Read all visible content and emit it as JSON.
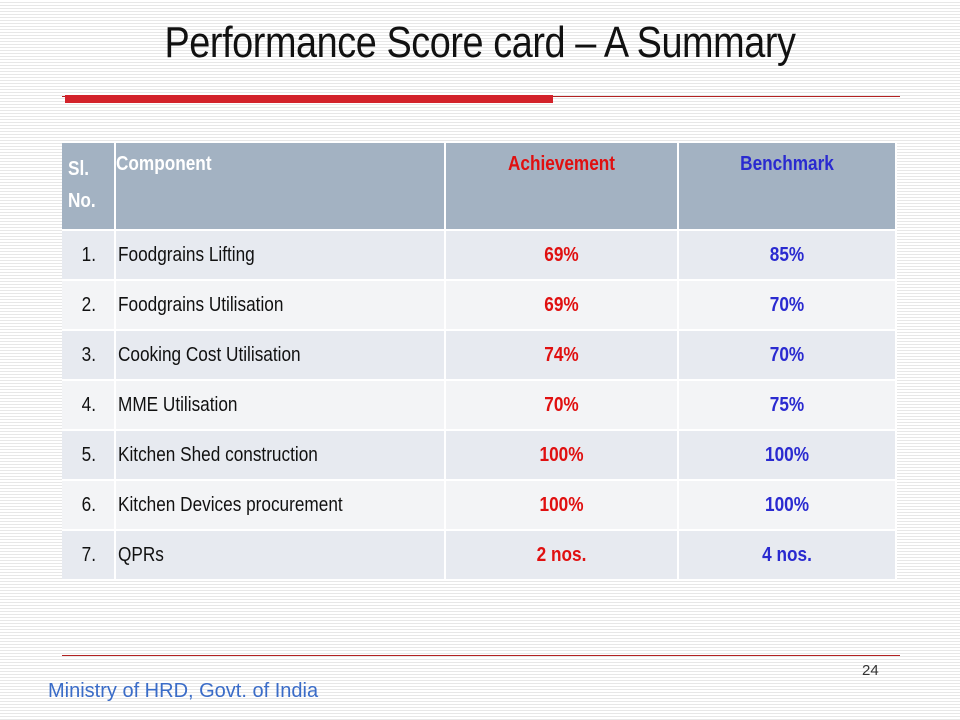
{
  "slide": {
    "title": "Performance Score card – A Summary",
    "page_number": "24",
    "footer": "Ministry of HRD, Govt. of India",
    "colors": {
      "accent_red": "#d3222a",
      "achievement_text": "#e01010",
      "benchmark_text": "#2a2ad0",
      "header_fill": "#a3b2c2",
      "footer_text": "#3a6cc8"
    }
  },
  "table": {
    "headers": {
      "sl_no": "Sl. No.",
      "component": "Component",
      "achievement": "Achievement",
      "benchmark": "Benchmark"
    },
    "rows": [
      {
        "sl": "1.",
        "component": "Foodgrains Lifting",
        "achievement": "69%",
        "benchmark": "85%"
      },
      {
        "sl": "2.",
        "component": "Foodgrains Utilisation",
        "achievement": "69%",
        "benchmark": "70%"
      },
      {
        "sl": "3.",
        "component": "Cooking Cost Utilisation",
        "achievement": "74%",
        "benchmark": "70%"
      },
      {
        "sl": "4.",
        "component": "MME Utilisation",
        "achievement": "70%",
        "benchmark": "75%"
      },
      {
        "sl": "5.",
        "component": "Kitchen Shed construction",
        "achievement": "100%",
        "benchmark": "100%"
      },
      {
        "sl": "6.",
        "component": "Kitchen Devices procurement",
        "achievement": "100%",
        "benchmark": "100%"
      },
      {
        "sl": "7.",
        "component": "QPRs",
        "achievement": "2 nos.",
        "benchmark": "4 nos."
      }
    ]
  }
}
